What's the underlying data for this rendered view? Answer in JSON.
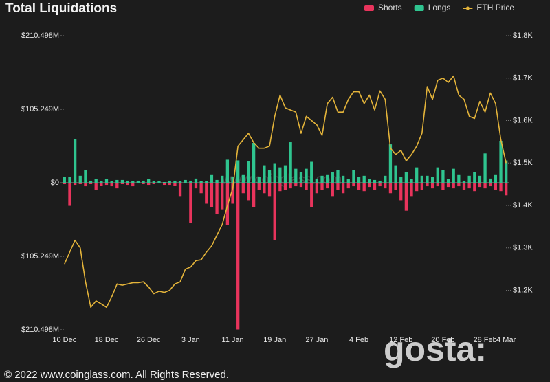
{
  "chart_data": {
    "type": "bar",
    "title": "Total Liquidations",
    "footer": "© 2022 www.coinglass.com. All Rights Reserved.",
    "watermarks": [
      "www.coinglass.com",
      "gosta:"
    ],
    "categories": [
      "10 Dec",
      null,
      null,
      null,
      null,
      null,
      null,
      null,
      "18 Dec",
      null,
      null,
      null,
      null,
      null,
      null,
      null,
      "26 Dec",
      null,
      null,
      null,
      null,
      null,
      null,
      null,
      "3 Jan",
      null,
      null,
      null,
      null,
      null,
      null,
      null,
      "11 Jan",
      null,
      null,
      null,
      null,
      null,
      null,
      null,
      "19 Jan",
      null,
      null,
      null,
      null,
      null,
      null,
      null,
      "27 Jan",
      null,
      null,
      null,
      null,
      null,
      null,
      null,
      "4 Feb",
      null,
      null,
      null,
      null,
      null,
      null,
      null,
      "12 Feb",
      null,
      null,
      null,
      null,
      null,
      null,
      null,
      "20 Feb",
      null,
      null,
      null,
      null,
      null,
      null,
      null,
      "28 Feb",
      null,
      null,
      null,
      "4 Mar"
    ],
    "series": [
      {
        "name": "Shorts",
        "color": "#e8345c",
        "type": "bar",
        "values": [
          -2,
          -33,
          -3,
          -2,
          -5,
          -2,
          -10,
          -4,
          -3,
          -5,
          -8,
          -2,
          -3,
          -5,
          -1,
          -2,
          -3,
          -2,
          -1,
          -3,
          -3,
          -4,
          -20,
          -1,
          -58,
          -8,
          -15,
          -30,
          -35,
          -45,
          -38,
          -60,
          -30,
          -210,
          -15,
          -25,
          -35,
          -10,
          -15,
          -20,
          -82,
          -12,
          -10,
          -8,
          -5,
          -6,
          -10,
          -35,
          -15,
          -10,
          -8,
          -20,
          -10,
          -15,
          -8,
          -5,
          -10,
          -12,
          -6,
          -10,
          -5,
          -8,
          -15,
          -10,
          -25,
          -40,
          -20,
          -12,
          -10,
          -5,
          -8,
          -5,
          -10,
          -6,
          -8,
          -5,
          -10,
          -8,
          -12,
          -6,
          -8,
          -5,
          -10,
          -12,
          -18
        ]
      },
      {
        "name": "Longs",
        "color": "#2fc48f",
        "type": "bar",
        "values": [
          8,
          8,
          62,
          10,
          18,
          3,
          5,
          2,
          5,
          2,
          4,
          4,
          3,
          2,
          3,
          3,
          5,
          2,
          2,
          1,
          3,
          3,
          2,
          4,
          3,
          6,
          2,
          2,
          12,
          4,
          10,
          33,
          8,
          32,
          12,
          31,
          57,
          8,
          25,
          18,
          28,
          22,
          25,
          58,
          20,
          15,
          20,
          30,
          5,
          10,
          12,
          15,
          18,
          10,
          5,
          18,
          8,
          10,
          5,
          4,
          3,
          10,
          55,
          25,
          8,
          15,
          5,
          22,
          10,
          10,
          8,
          22,
          18,
          5,
          20,
          12,
          3,
          10,
          15,
          10,
          42,
          6,
          12,
          60,
          32
        ]
      },
      {
        "name": "ETH Price",
        "color": "#e4b43a",
        "type": "line",
        "axis": "y2",
        "values": [
          1262,
          1290,
          1318,
          1300,
          1220,
          1160,
          1175,
          1168,
          1160,
          1185,
          1215,
          1212,
          1215,
          1218,
          1218,
          1220,
          1208,
          1192,
          1198,
          1195,
          1200,
          1215,
          1220,
          1250,
          1255,
          1270,
          1272,
          1290,
          1305,
          1330,
          1355,
          1400,
          1440,
          1540,
          1555,
          1570,
          1548,
          1535,
          1535,
          1540,
          1610,
          1660,
          1630,
          1625,
          1620,
          1570,
          1610,
          1600,
          1590,
          1565,
          1640,
          1655,
          1620,
          1620,
          1650,
          1668,
          1668,
          1640,
          1660,
          1625,
          1670,
          1650,
          1535,
          1520,
          1530,
          1505,
          1520,
          1540,
          1570,
          1680,
          1650,
          1695,
          1700,
          1690,
          1705,
          1660,
          1650,
          1610,
          1605,
          1645,
          1620,
          1665,
          1640,
          1555,
          1500
        ]
      }
    ],
    "ylim": [
      -210.498,
      210.498
    ],
    "yticks": [
      {
        "value": 210.498,
        "label": "$210.498M"
      },
      {
        "value": 105.249,
        "label": "$105.249M"
      },
      {
        "value": 0,
        "label": "$0"
      },
      {
        "value": -105.249,
        "label": "$105.249M"
      },
      {
        "value": -210.498,
        "label": "$210.498M"
      }
    ],
    "y2lim": [
      1107,
      1800
    ],
    "y2ticks": [
      {
        "value": 1800,
        "label": "$1.8K"
      },
      {
        "value": 1700,
        "label": "$1.7K"
      },
      {
        "value": 1600,
        "label": "$1.6K"
      },
      {
        "value": 1500,
        "label": "$1.5K"
      },
      {
        "value": 1400,
        "label": "$1.4K"
      },
      {
        "value": 1300,
        "label": "$1.3K"
      },
      {
        "value": 1200,
        "label": "$1.2K"
      }
    ],
    "grid": false,
    "legend": "top-right"
  }
}
